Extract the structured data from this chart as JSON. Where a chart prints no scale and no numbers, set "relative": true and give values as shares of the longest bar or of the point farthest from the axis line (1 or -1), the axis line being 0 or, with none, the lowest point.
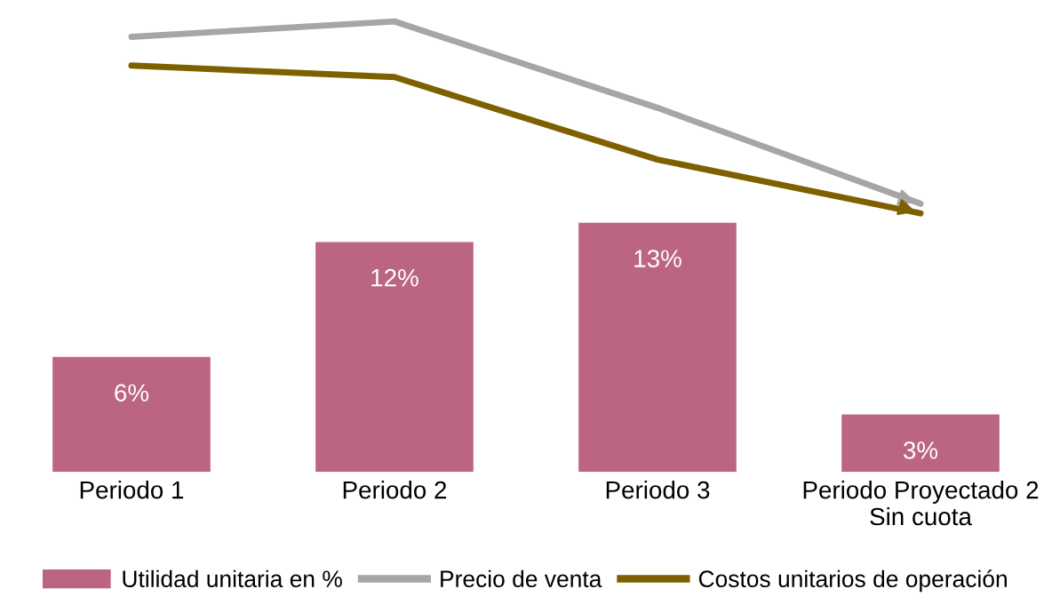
{
  "chart_data": [
    {
      "type": "line",
      "relative": true,
      "categories": [
        null,
        null,
        null,
        null
      ],
      "series": [
        {
          "name": "Precio de venta",
          "color": "#a6a6a6",
          "values": [
            0.92,
            1,
            0.55,
            0.05
          ]
        },
        {
          "name": "Costos unitarios de operación",
          "color": "#7f6000",
          "values": [
            0.77,
            0.71,
            0.28,
            0
          ]
        }
      ],
      "legend": "bottom",
      "grid": false,
      "tick_labels": false
    },
    {
      "type": "bar",
      "categories": [
        "Periodo 1",
        "Periodo 2",
        "Periodo 3",
        "Periodo Proyectado 2\nSin cuota"
      ],
      "series": [
        {
          "name": "Utilidad unitaria en %",
          "color": "#bb6580",
          "values": [
            6,
            12,
            13,
            3
          ],
          "value_labels": [
            "6%",
            "12%",
            "13%",
            "3%"
          ]
        }
      ],
      "legend": "bottom",
      "grid": false,
      "tick_labels": "x"
    }
  ]
}
